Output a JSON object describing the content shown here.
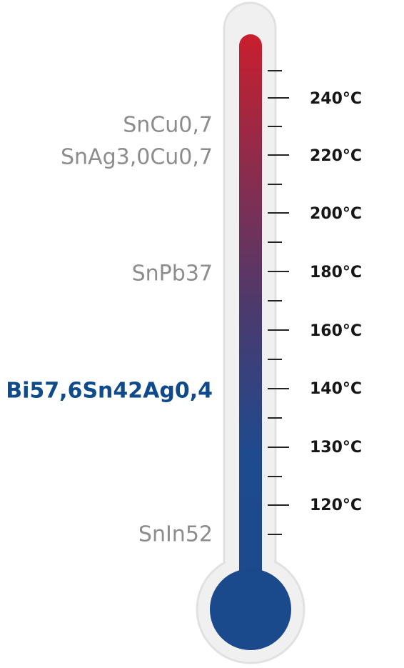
{
  "scale": {
    "ticks": [
      "240°C",
      "220°C",
      "200°C",
      "180°C",
      "160°C",
      "140°C",
      "130°C",
      "120°C"
    ]
  },
  "alloys": [
    {
      "label": "SnCu0,7"
    },
    {
      "label": "SnAg3,0Cu0,7"
    },
    {
      "label": "SnPb37"
    },
    {
      "label": "Bi57,6Sn42Ag0,4"
    },
    {
      "label": "SnIn52"
    }
  ]
}
